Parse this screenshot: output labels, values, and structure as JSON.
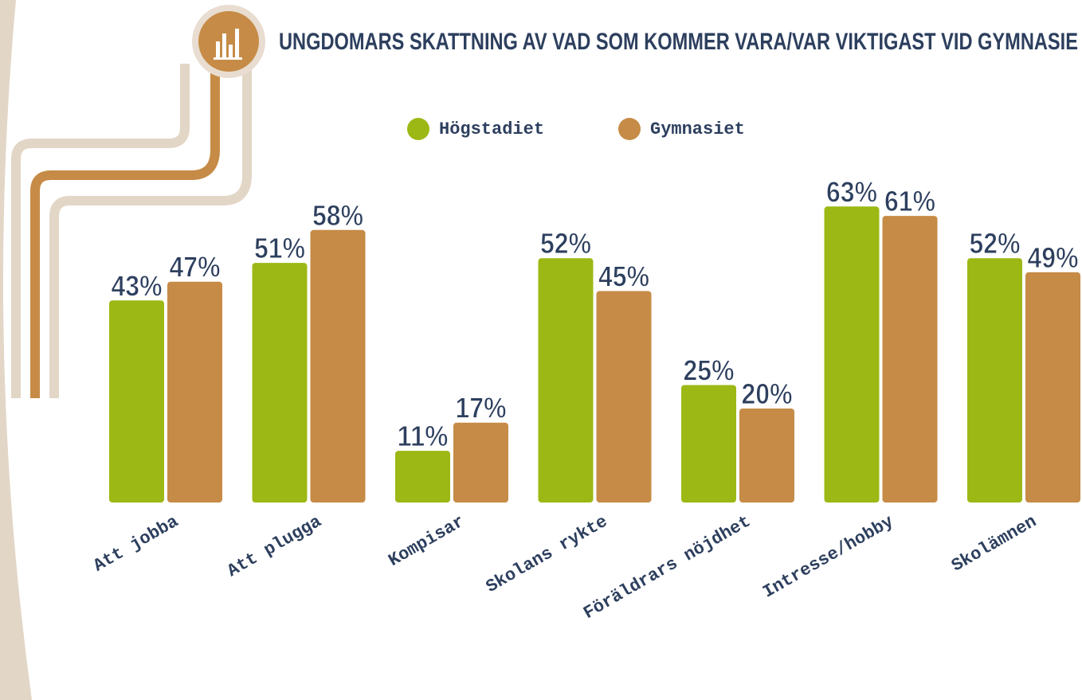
{
  "chart_data": {
    "type": "bar",
    "title": "UNGDOMARS SKATTNING AV VAD SOM KOMMER VARA/VAR VIKTIGAST VID GYMNASIE",
    "categories": [
      "Att jobba",
      "Att plugga",
      "Kompisar",
      "Skolans rykte",
      "Föräldrars nöjdhet",
      "Intresse/hobby",
      "Skolämnen"
    ],
    "series": [
      {
        "name": "Högstadiet",
        "color": "#9cb814",
        "values": [
          43,
          51,
          11,
          52,
          25,
          63,
          52
        ],
        "value_labels": [
          "43%",
          "51%",
          "11%",
          "52%",
          "25%",
          "63%",
          "52%"
        ]
      },
      {
        "name": "Gymnasiet",
        "color": "#c68b46",
        "values": [
          47,
          58,
          17,
          45,
          20,
          61,
          49
        ],
        "value_labels": [
          "47%",
          "58%",
          "17%",
          "45%",
          "20%",
          "61%",
          "49%"
        ]
      }
    ]
  }
}
